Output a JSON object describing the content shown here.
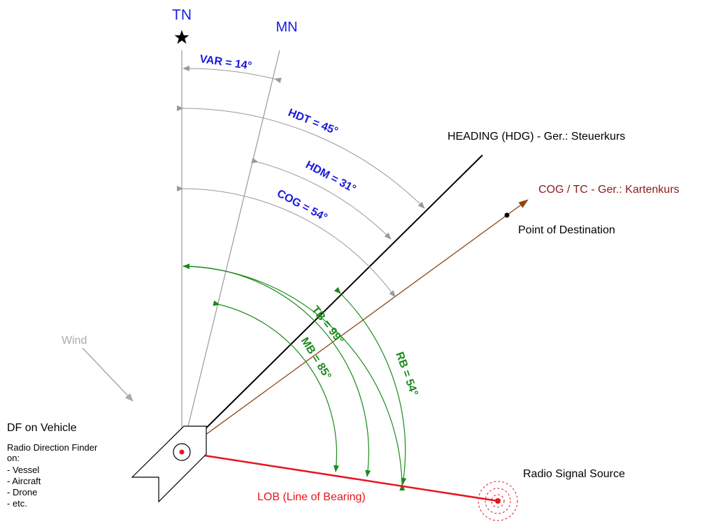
{
  "labels": {
    "tn": "TN",
    "mn": "MN",
    "var": "VAR = 14°",
    "hdt": "HDT = 45°",
    "hdm": "HDM = 31°",
    "cog_angle": "COG = 54°",
    "heading": "HEADING (HDG) - Ger.: Steuerkurs",
    "cog_tc": "COG / TC - Ger.: Kartenkurs",
    "destination": "Point of Destination",
    "tb": "TB = 99°",
    "mb": "MB = 85°",
    "rb": "RB = 54°",
    "wind": "Wind",
    "df_title": "DF on Vehicle",
    "df_desc_1": "Radio Direction Finder",
    "df_desc_2": "on:",
    "df_item_1": "- Vessel",
    "df_item_2": "- Aircraft",
    "df_item_3": "- Drone",
    "df_item_4": "- etc.",
    "lob": "LOB (Line of Bearing)",
    "radio_source": "Radio Signal Source"
  },
  "colors": {
    "blue": "#1a1adc",
    "green": "#1a8a1a",
    "red": "#e8141e",
    "brown": "#8b4513",
    "dark_red": "#8b1a1a",
    "grey": "#999999",
    "black": "#000000"
  },
  "angles": {
    "variation_deg": 14,
    "heading_true_deg": 45,
    "heading_magnetic_deg": 31,
    "course_over_ground_deg": 54,
    "true_bearing_deg": 99,
    "magnetic_bearing_deg": 85,
    "relative_bearing_deg": 54
  }
}
